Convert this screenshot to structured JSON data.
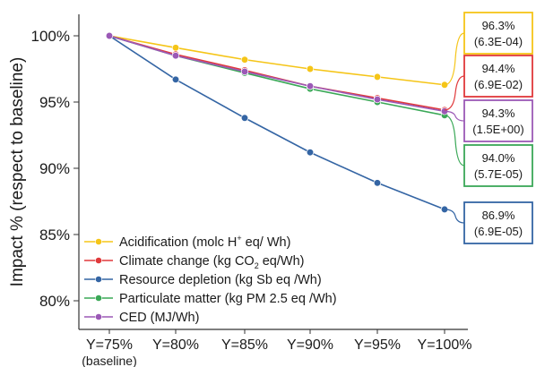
{
  "chart_data": {
    "type": "line",
    "title": "",
    "xlabel": "",
    "ylabel": "Impact % (respect to baseline)",
    "categories": [
      "Y=75%",
      "Y=80%",
      "Y=85%",
      "Y=90%",
      "Y=95%",
      "Y=100%"
    ],
    "category_sublabel": "(baseline)",
    "ylim": [
      78,
      101
    ],
    "yticks": [
      "80%",
      "85%",
      "90%",
      "95%",
      "100%"
    ],
    "ytick_values": [
      80,
      85,
      90,
      95,
      100
    ],
    "grid": false,
    "legend_position": "bottom-left",
    "series": [
      {
        "name": "Acidification (molc H+ eq/ Wh)",
        "color": "#f5c518",
        "values": [
          100,
          99.1,
          98.2,
          97.5,
          96.9,
          96.3
        ]
      },
      {
        "name": "Climate change (kg CO2 eq/Wh)",
        "color": "#e0393b",
        "values": [
          100,
          98.6,
          97.4,
          96.2,
          95.3,
          94.4
        ]
      },
      {
        "name": "Resource depletion (kg Sb eq /Wh)",
        "color": "#3465a4",
        "values": [
          100,
          96.7,
          93.8,
          91.2,
          88.9,
          86.9
        ]
      },
      {
        "name": "Particulate matter (kg PM 2.5 eq /Wh)",
        "color": "#3aa857",
        "values": [
          100,
          98.5,
          97.2,
          96.0,
          95.0,
          94.0
        ]
      },
      {
        "name": "CED (MJ/Wh)",
        "color": "#9b59b6",
        "values": [
          100,
          98.5,
          97.3,
          96.2,
          95.2,
          94.3
        ]
      }
    ],
    "legend": [
      {
        "pre": "Acidification (molc H",
        "sup": "+",
        "sub": "",
        "post": " eq/ Wh)",
        "color": "#f5c518"
      },
      {
        "pre": "Climate change (kg CO",
        "sup": "",
        "sub": "2",
        "post": " eq/Wh)",
        "color": "#e0393b"
      },
      {
        "pre": "Resource depletion (kg Sb eq /Wh)",
        "sup": "",
        "sub": "",
        "post": "",
        "color": "#3465a4"
      },
      {
        "pre": "Particulate matter (kg PM 2.5 eq /Wh)",
        "sup": "",
        "sub": "",
        "post": "",
        "color": "#3aa857"
      },
      {
        "pre": "CED (MJ/Wh)",
        "sup": "",
        "sub": "",
        "post": "",
        "color": "#9b59b6"
      }
    ],
    "annotations": [
      {
        "pct": "96.3%",
        "value": "(6.3E-04)",
        "color": "#f5c518",
        "series": 0
      },
      {
        "pct": "94.4%",
        "value": "(6.9E-02)",
        "color": "#e0393b",
        "series": 1
      },
      {
        "pct": "94.3%",
        "value": "(1.5E+00)",
        "color": "#9b59b6",
        "series": 4
      },
      {
        "pct": "94.0%",
        "value": "(5.7E-05)",
        "color": "#3aa857",
        "series": 3
      },
      {
        "pct": "86.9%",
        "value": "(6.9E-05)",
        "color": "#3465a4",
        "series": 2
      }
    ]
  }
}
